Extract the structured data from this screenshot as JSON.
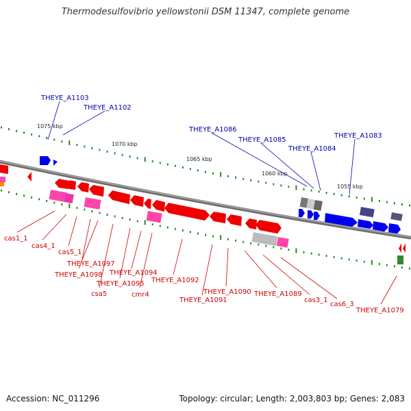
{
  "title": "Thermodesulfovibrio yellowstonii DSM 11347, complete genome",
  "footer": {
    "accession": "Accession: NC_011296",
    "topology": "Topology: circular; Length: 2,003,803 bp; Genes: 2,083"
  },
  "colors": {
    "backbone": "#888888",
    "forward_gene": "#0000ee",
    "reverse_gene": "#ee0000",
    "crispr_gene": "#ff44aa",
    "grey_gene": "#aaaaaa",
    "purple_gene": "#444488",
    "tick": "#228822",
    "label_blue": "#0000aa",
    "label_red": "#cc0000"
  },
  "scale": {
    "unit": "kbp",
    "ticks": [
      "1075 kbp",
      "1070 kbp",
      "1065 kbp",
      "1060 kbp",
      "1055 kbp"
    ]
  },
  "labels_forward": [
    "THEYE_A1103",
    "THEYE_A1102",
    "THEYE_A1086",
    "THEYE_A1085",
    "THEYE_A1084",
    "THEYE_A1083"
  ],
  "labels_reverse": [
    "cas1_1",
    "cas4_1",
    "cas5_1",
    "THEYE_A1097",
    "THEYE_A1098",
    "csa5",
    "THEYE_A1095",
    "THEYE_A1094",
    "cmr4",
    "THEYE_A1092",
    "THEYE_A1091",
    "THEYE_A1090",
    "THEYE_A1089",
    "cas3_1",
    "cas6_3",
    "THEYE_A1079"
  ]
}
